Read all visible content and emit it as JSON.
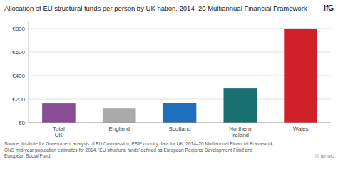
{
  "chart_data": {
    "type": "bar",
    "title": "Allocation of EU structural funds per person by UK nation, 2014–20 Multiannual Financial Framework",
    "categories": [
      "Total\nUK",
      "England",
      "Scotland",
      "Northern\nIreland",
      "Wales"
    ],
    "values": [
      163,
      120,
      168,
      290,
      800
    ],
    "colors": [
      "#8B4C96",
      "#AAAAAA",
      "#1F6FBF",
      "#1A7070",
      "#D0202A"
    ],
    "ylim": [
      0,
      860
    ],
    "yticks": [
      {
        "value": 0,
        "label": "€0"
      },
      {
        "value": 200,
        "label": "€200"
      },
      {
        "value": 400,
        "label": "€400"
      },
      {
        "value": 600,
        "label": "€600"
      },
      {
        "value": 800,
        "label": "€800"
      }
    ],
    "grid": true,
    "annotations": [
      "IfG",
      "Source: Institute for Government analysis of EU Commission, ESIF country data for UK, 2014–20 Multiannual Financial Framework;\nONS mid-year population estimates for 2014. ‘EU structural funds’ defined as European Regional Development Fund and\nEuropean Social Fund.",
      "Ⓢ BY-NC"
    ]
  }
}
